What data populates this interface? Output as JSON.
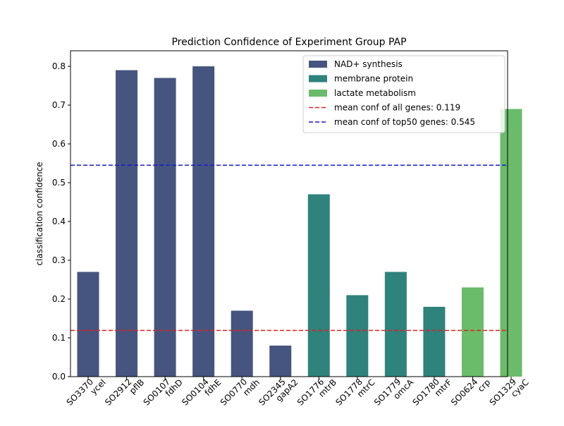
{
  "chart_data": {
    "type": "bar",
    "title": "Prediction Confidence of Experiment Group PAP",
    "xlabel": "",
    "ylabel": "classification confidence",
    "ylim": [
      0,
      0.84
    ],
    "yticks": [
      "0.0",
      "0.1",
      "0.2",
      "0.3",
      "0.4",
      "0.5",
      "0.6",
      "0.7",
      "0.8"
    ],
    "categories": [
      {
        "id": "SO3370",
        "gene": "yceI"
      },
      {
        "id": "SO2912",
        "gene": "pflB"
      },
      {
        "id": "SO0107",
        "gene": "fdhD"
      },
      {
        "id": "SO0104",
        "gene": "fdhE"
      },
      {
        "id": "SO0770",
        "gene": "mdh"
      },
      {
        "id": "SO2345",
        "gene": "gapA2"
      },
      {
        "id": "SO1776",
        "gene": "mtrB"
      },
      {
        "id": "SO1778",
        "gene": "mtrC"
      },
      {
        "id": "SO1779",
        "gene": "omcA"
      },
      {
        "id": "SO1780",
        "gene": "mtrF"
      },
      {
        "id": "SO0624",
        "gene": "crp"
      },
      {
        "id": "SO1329",
        "gene": "cyaC"
      }
    ],
    "values": [
      0.27,
      0.79,
      0.77,
      0.8,
      0.17,
      0.08,
      0.47,
      0.21,
      0.27,
      0.18,
      0.23,
      0.69
    ],
    "bar_group": [
      0,
      0,
      0,
      0,
      0,
      0,
      1,
      1,
      1,
      1,
      2,
      2
    ],
    "groups": [
      {
        "name": "NAD+ synthesis",
        "color": "#46557f"
      },
      {
        "name": "membrane protein",
        "color": "#2e837c"
      },
      {
        "name": "lactate metabolism",
        "color": "#6abb6a"
      }
    ],
    "reference_lines": [
      {
        "label": "mean conf of all genes: 0.119",
        "value": 0.119,
        "color": "#e0201f"
      },
      {
        "label": "mean conf of top50 genes: 0.545",
        "value": 0.545,
        "color": "#1a1acc"
      }
    ],
    "legend_position": "top-right",
    "grid": false
  }
}
